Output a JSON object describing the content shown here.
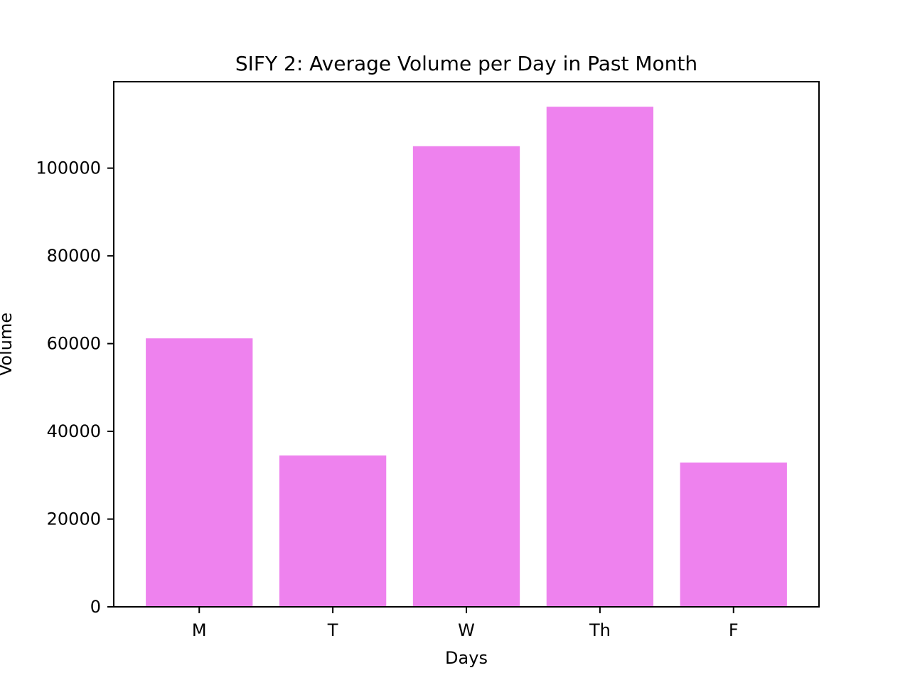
{
  "chart_data": {
    "type": "bar",
    "title": "SIFY 2: Average Volume per Day in Past Month",
    "xlabel": "Days",
    "ylabel": "Volume",
    "categories": [
      "M",
      "T",
      "W",
      "Th",
      "F"
    ],
    "values": [
      61200,
      34500,
      105000,
      114000,
      32900
    ],
    "ylim": [
      0,
      119700
    ],
    "yticks": [
      0,
      20000,
      40000,
      60000,
      80000,
      100000
    ],
    "ytick_labels": [
      "0",
      "20000",
      "40000",
      "60000",
      "80000",
      "100000"
    ],
    "bar_color": "#EE82EE",
    "grid": false,
    "legend": "none"
  }
}
